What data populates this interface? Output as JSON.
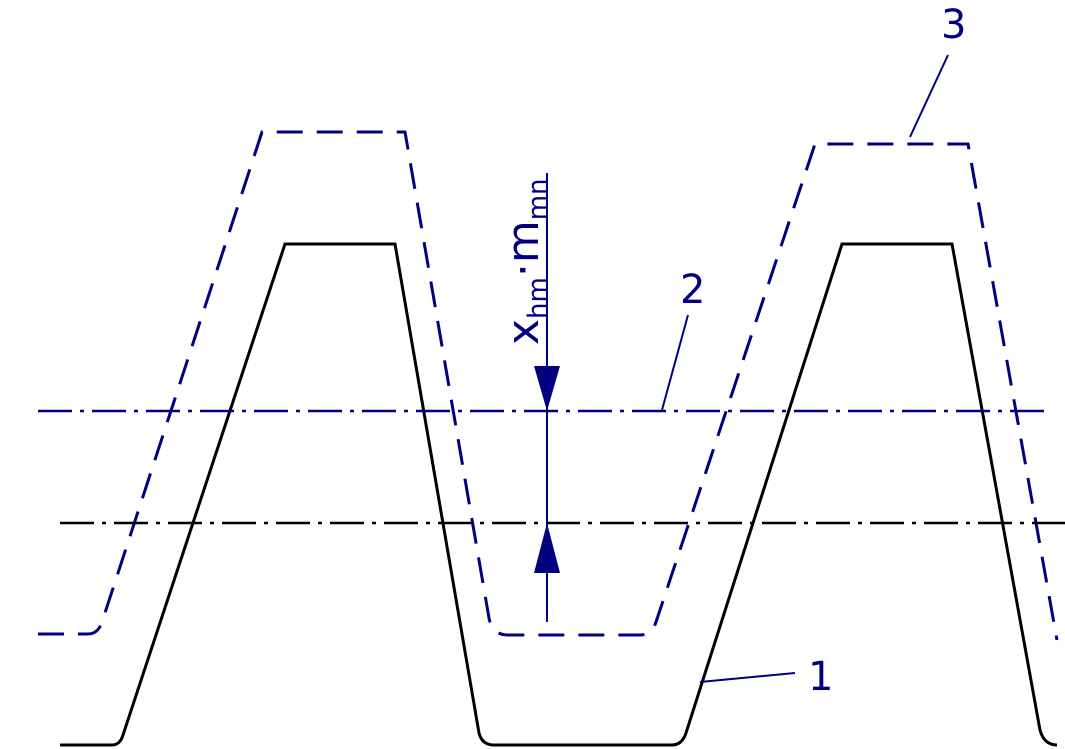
{
  "labels": {
    "one": "1",
    "two": "2",
    "three": "3"
  },
  "dimension": {
    "base": "x",
    "sub1": "hm",
    "dot": "·",
    "base2": "m",
    "sub2": "mn"
  },
  "colors": {
    "accent": "#000080",
    "profile": "#000000"
  }
}
